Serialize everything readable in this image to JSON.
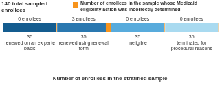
{
  "chart_data": {
    "type": "bar",
    "orientation": "horizontal",
    "stacked": true,
    "grid": false,
    "tick_labels": false,
    "data_labels": true,
    "legend": "top-right",
    "title": "Number of enrollees in the stratified sample",
    "y_label": "140 total sampled enrollees",
    "xlim": [
      0,
      140
    ],
    "categories": [
      "renewed on an ex parte basis",
      "renewed using renewal form",
      "ineligible",
      "terminated for procedural reasons"
    ],
    "values": [
      35,
      35,
      35,
      35
    ],
    "colors": [
      "#145c8f",
      "#2a78b0",
      "#58abdc",
      "#a9daf0"
    ],
    "incorrect": {
      "name": "Number of enrollees in the sample whose Medicaid eligibility action was incorrectly determined",
      "color": "#f7941d",
      "values": [
        0,
        3,
        0,
        0
      ],
      "value_labels": [
        "0 enrollees",
        "3 enrollees",
        "0 enrollees",
        "0 enrollees"
      ]
    }
  }
}
